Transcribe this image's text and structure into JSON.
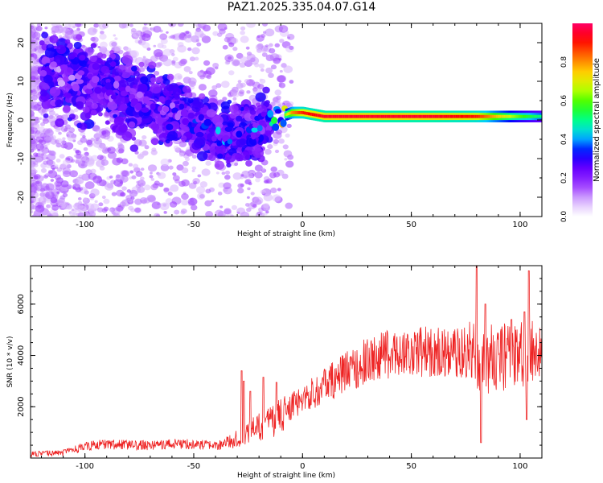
{
  "title": "PAZ1.2025.335.04.07.G14",
  "colors": {
    "background": "#ffffff",
    "frame": "#000000",
    "snr_line": "#ee2222"
  },
  "colormap": [
    "#ffffff",
    "#d8b4fe",
    "#9933ff",
    "#6600ff",
    "#0000ff",
    "#00ccff",
    "#00ff88",
    "#33ff00",
    "#ccff00",
    "#ffcc00",
    "#ff6600",
    "#ff0000",
    "#ff0066"
  ],
  "chart_data": [
    {
      "type": "heatmap",
      "name": "spectrogram",
      "xlabel": "Height of straight line (km)",
      "ylabel": "Frequency (Hz)",
      "xlim": [
        -125,
        110
      ],
      "ylim": [
        -25,
        25
      ],
      "xticks": [
        "-100",
        "-50",
        "0",
        "50",
        "100"
      ],
      "xtick_values": [
        -100,
        -50,
        0,
        50,
        100
      ],
      "yticks": [
        "20",
        "10",
        "0",
        "-10",
        "-20"
      ],
      "ytick_values": [
        20,
        10,
        0,
        -10,
        -20
      ],
      "colorbar": {
        "label": "Normalized spectral amplitude",
        "range": [
          0,
          1
        ],
        "ticks": [
          "0.0",
          "0.2",
          "0.4",
          "0.6",
          "0.8"
        ],
        "tick_values": [
          0.0,
          0.2,
          0.4,
          0.6,
          0.8
        ]
      },
      "ridge": {
        "x": [
          -115,
          -105,
          -95,
          -85,
          -75,
          -65,
          -55,
          -45,
          -38,
          -30,
          -22,
          -15,
          -10,
          -5,
          0,
          10,
          20,
          40,
          60,
          80,
          100,
          110
        ],
        "freq": [
          12,
          11,
          9,
          7,
          5,
          3,
          1,
          -2,
          -4,
          -4,
          -2,
          0,
          1,
          2,
          2,
          1,
          1,
          1,
          1,
          1,
          1,
          1
        ],
        "amplitude": [
          0.12,
          0.15,
          0.2,
          0.22,
          0.2,
          0.2,
          0.22,
          0.25,
          0.3,
          0.28,
          0.3,
          0.35,
          0.5,
          0.8,
          0.9,
          0.95,
          0.95,
          0.95,
          0.95,
          0.9,
          0.6,
          0.5
        ]
      }
    },
    {
      "type": "line",
      "name": "snr",
      "xlabel": "Height of straight line (km)",
      "ylabel": "SNR (10 * v/v)",
      "xlim": [
        -125,
        110
      ],
      "ylim": [
        0,
        7500
      ],
      "xticks": [
        "-100",
        "-50",
        "0",
        "50",
        "100"
      ],
      "xtick_values": [
        -100,
        -50,
        0,
        50,
        100
      ],
      "yticks": [
        "2000",
        "4000",
        "6000"
      ],
      "ytick_values": [
        2000,
        4000,
        6000
      ],
      "trend": {
        "x": [
          -125,
          -110,
          -100,
          -90,
          -80,
          -70,
          -60,
          -50,
          -40,
          -30,
          -25,
          -20,
          -15,
          -10,
          -5,
          0,
          5,
          10,
          20,
          30,
          40,
          50,
          60,
          70,
          78,
          82,
          90,
          100,
          110
        ],
        "y": [
          150,
          200,
          450,
          550,
          500,
          500,
          550,
          550,
          450,
          750,
          1000,
          1200,
          1400,
          1650,
          2000,
          2300,
          2550,
          2800,
          3350,
          3800,
          4050,
          4150,
          4150,
          4100,
          4150,
          3800,
          3900,
          3950,
          4150
        ]
      },
      "spikes": [
        {
          "x": -28,
          "y": 3400
        },
        {
          "x": -27,
          "y": 3000
        },
        {
          "x": -24,
          "y": 2600
        },
        {
          "x": -18,
          "y": 3150
        },
        {
          "x": -12,
          "y": 2950
        },
        {
          "x": 80,
          "y": 7500
        },
        {
          "x": 82,
          "y": 600
        },
        {
          "x": 84,
          "y": 6000
        },
        {
          "x": 96,
          "y": 5400
        },
        {
          "x": 102,
          "y": 5700
        },
        {
          "x": 104,
          "y": 7300
        },
        {
          "x": 103,
          "y": 1500
        }
      ]
    }
  ]
}
